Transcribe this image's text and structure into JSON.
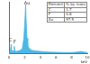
{
  "chart_data": {
    "type": "line",
    "x_label": "keV",
    "x": [
      0,
      0.1,
      0.2,
      0.28,
      0.35,
      0.5,
      0.6,
      0.68,
      0.75,
      0.9,
      1.2,
      1.5,
      1.7,
      1.9,
      2.05,
      2.12,
      2.2,
      2.3,
      2.4,
      2.6,
      2.8,
      3.0,
      3.5,
      4,
      5,
      6,
      7,
      8,
      8.5,
      9.2,
      9.7,
      10
    ],
    "values": [
      0,
      2,
      8,
      18,
      6,
      4,
      6,
      14,
      5,
      4,
      5,
      7,
      10,
      30,
      70,
      95,
      60,
      30,
      15,
      10,
      7,
      6,
      5,
      4,
      3,
      2.5,
      2,
      2,
      2.5,
      4,
      2.5,
      2
    ],
    "color": "#4cb8e6",
    "xlim": [
      0,
      10
    ],
    "xticks": [
      0,
      2,
      4,
      6,
      8,
      10
    ],
    "ylim": [
      0,
      100
    ],
    "tick_labels": "x",
    "grid": false,
    "annotations": [
      {
        "text": "Au",
        "x": 2.3,
        "y": 92
      },
      {
        "text": "C",
        "x": 0.2,
        "y": 22
      },
      {
        "text": "F",
        "x": 0.75,
        "y": 18
      }
    ],
    "table": {
      "header": [
        "Element",
        "% by mass"
      ],
      "rows": [
        [
          "C",
          1.7
        ],
        [
          "F",
          0.8
        ],
        [
          "Au",
          97.5
        ]
      ]
    }
  }
}
